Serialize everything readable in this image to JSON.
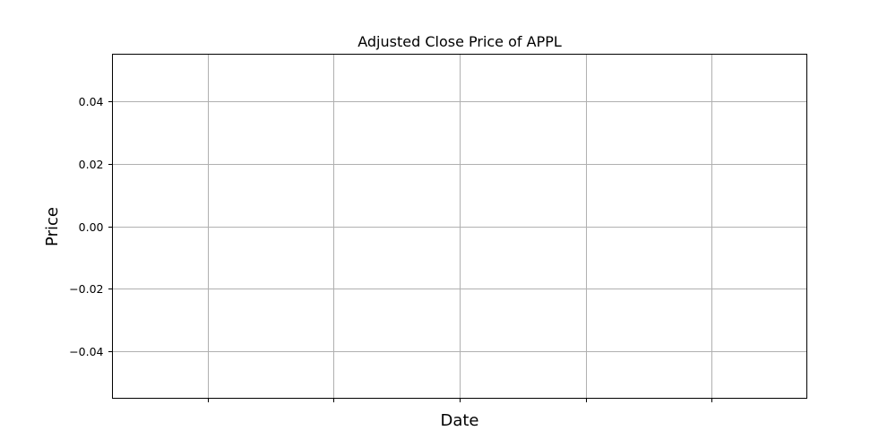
{
  "chart_data": {
    "type": "line",
    "title": "Adjusted Close Price of APPL",
    "xlabel": "Date",
    "ylabel": "Price",
    "x": [],
    "series": [
      {
        "values": []
      }
    ],
    "ylim": [
      -0.055,
      0.055
    ],
    "yticks": [
      -0.04,
      -0.02,
      0.0,
      0.02,
      0.04
    ],
    "ytick_labels": [
      "−0.04",
      "−0.02",
      "0.00",
      "0.02",
      "0.04"
    ],
    "xtick_count": 5,
    "xtick_labels": [],
    "grid": true,
    "legend": "none",
    "colors": {
      "grid": "#b0b0b0",
      "frame": "#000000",
      "background": "#ffffff"
    }
  }
}
